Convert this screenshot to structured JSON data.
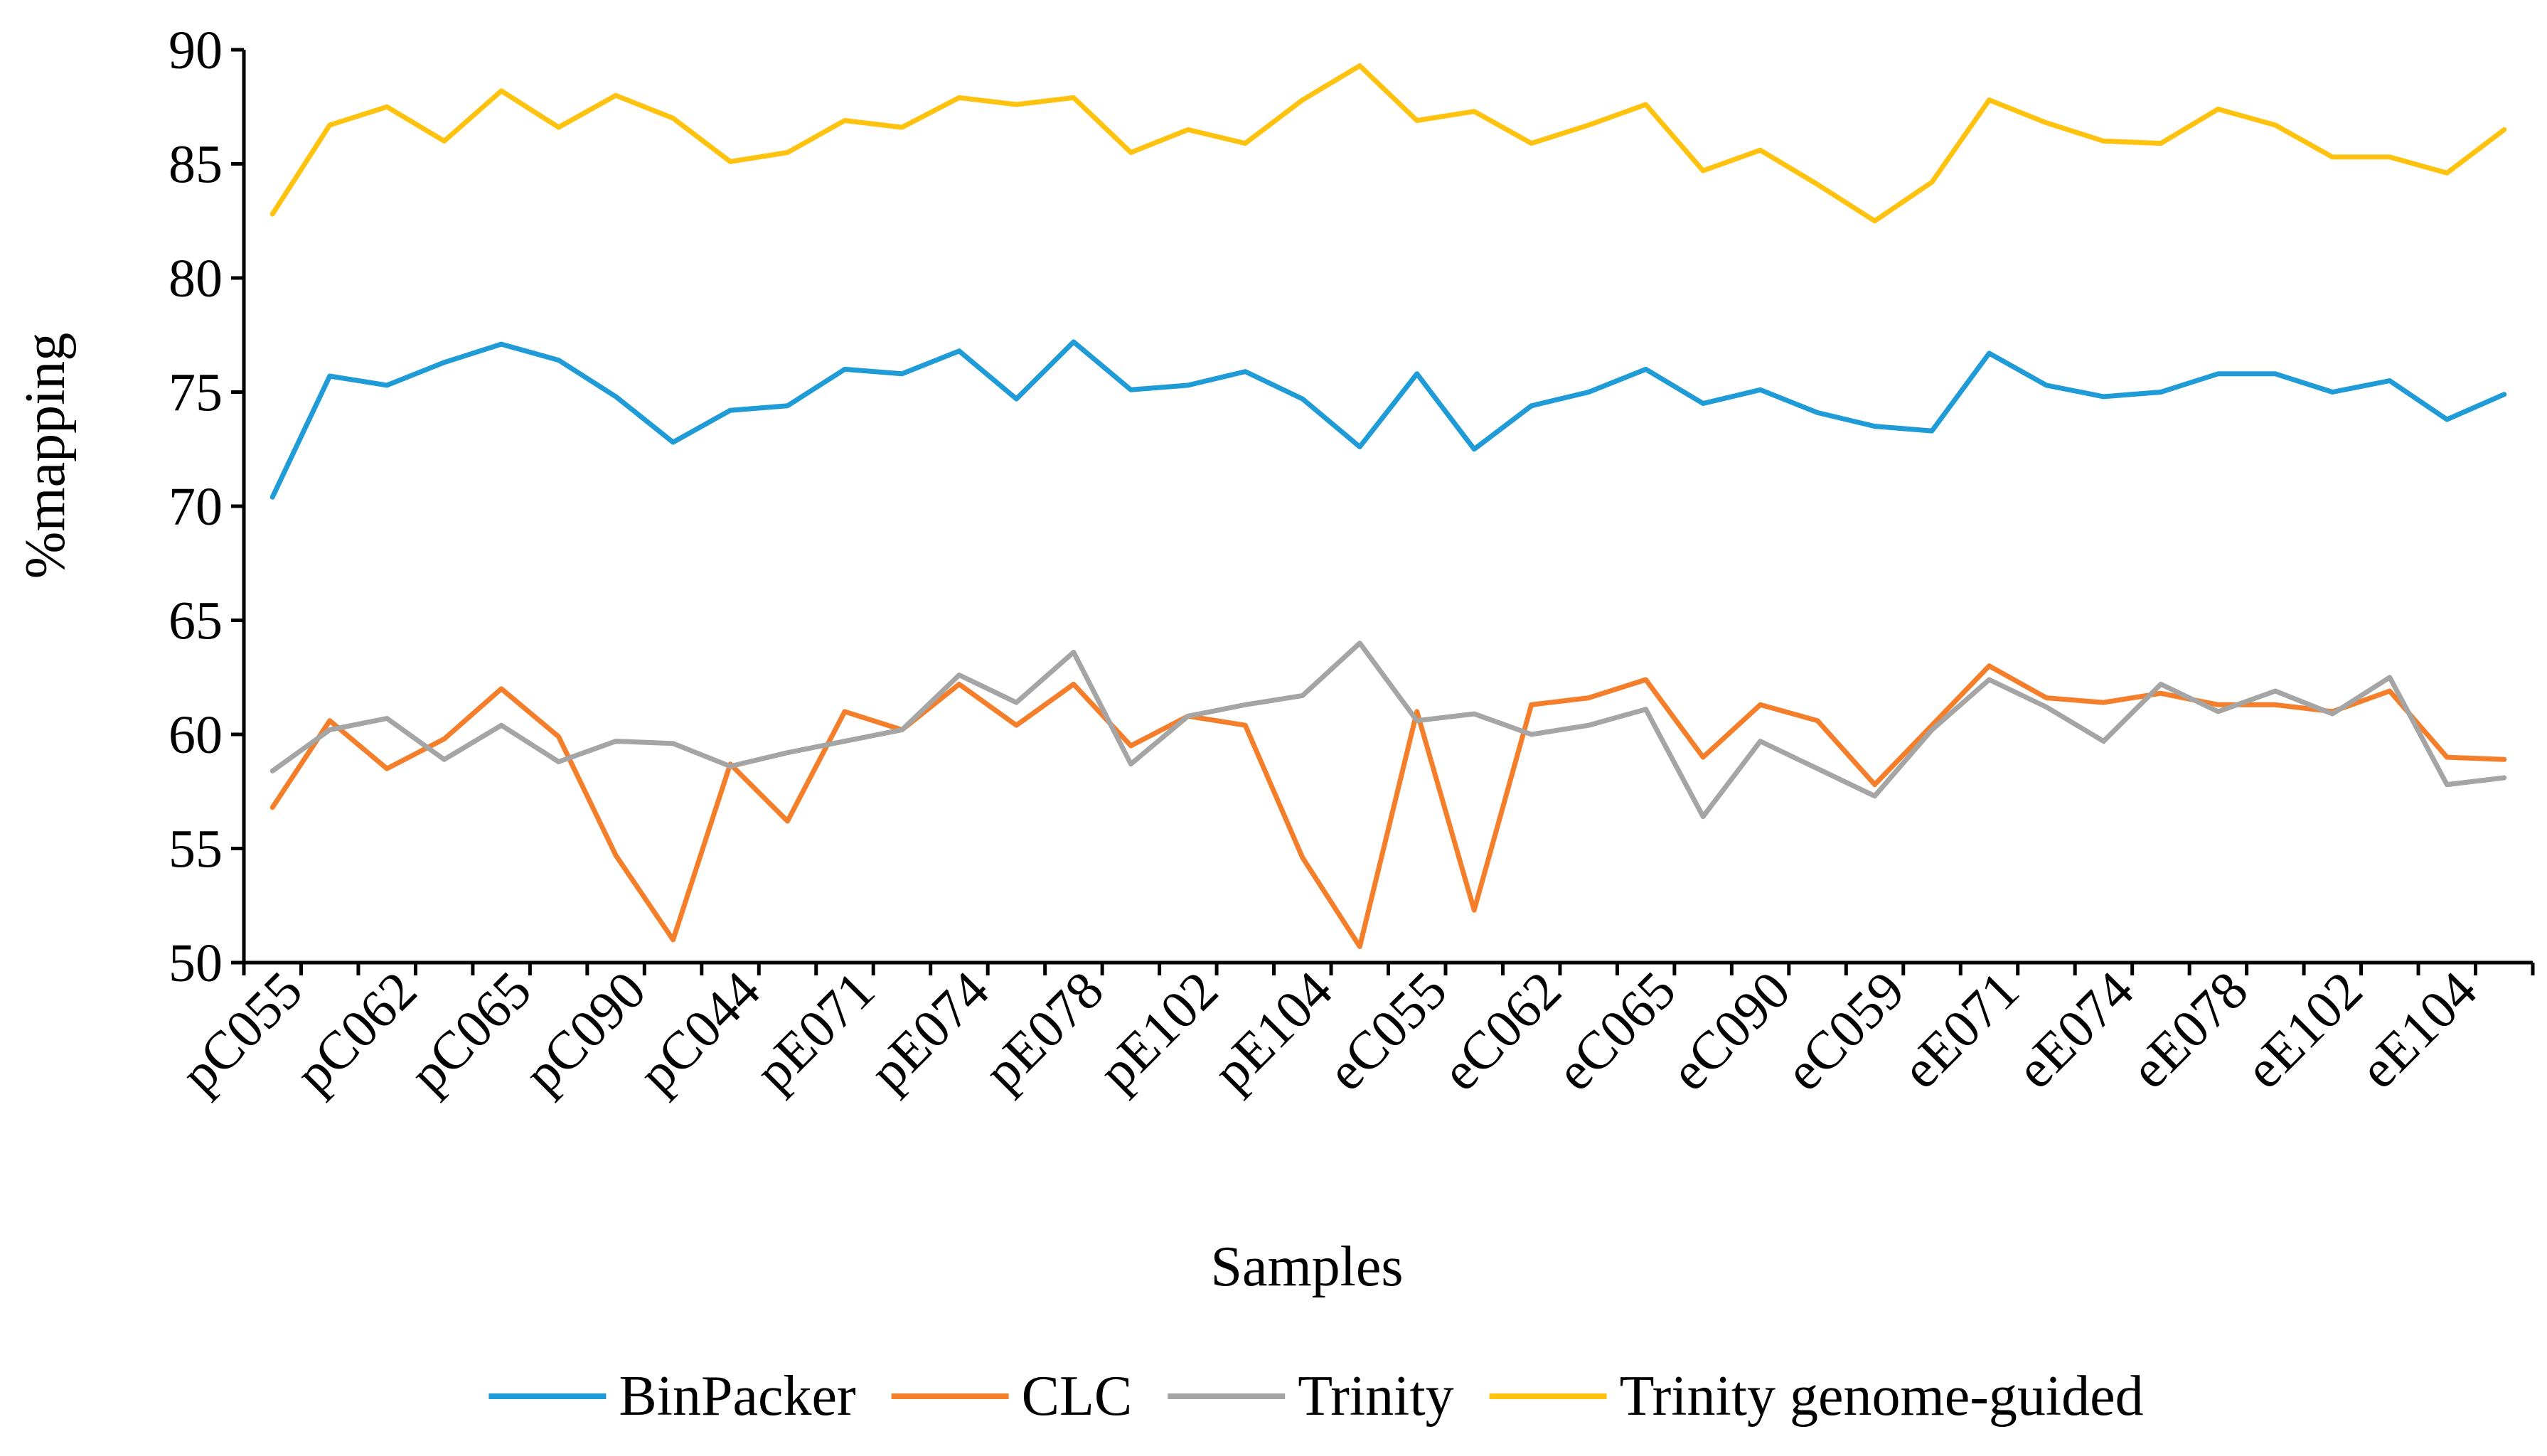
{
  "chart_data": {
    "type": "line",
    "title": "",
    "xlabel": "Samples",
    "ylabel": "%mapping",
    "ylim": [
      50,
      90
    ],
    "yticks": [
      50,
      55,
      60,
      65,
      70,
      75,
      80,
      85,
      90
    ],
    "grid": false,
    "legend_position": "bottom",
    "x_labels_shown": [
      "pC055",
      "pC062",
      "pC065",
      "pC090",
      "pC044",
      "pE071",
      "pE074",
      "pE078",
      "pE102",
      "pE104",
      "eC055",
      "eC062",
      "eC065",
      "eC090",
      "eC059",
      "eE071",
      "eE074",
      "eE078",
      "eE102",
      "eE104"
    ],
    "series": [
      {
        "name": "BinPacker",
        "color": "#1F9BD7",
        "values": [
          70.4,
          75.7,
          75.3,
          76.3,
          77.1,
          76.4,
          74.8,
          72.8,
          74.2,
          74.4,
          76.0,
          75.8,
          76.8,
          74.7,
          77.2,
          75.1,
          75.3,
          75.9,
          74.7,
          72.6,
          75.8,
          72.5,
          74.4,
          75.0,
          76.0,
          74.5,
          75.1,
          74.1,
          73.5,
          73.3,
          76.7,
          75.3,
          74.8,
          75.0,
          75.8,
          75.8,
          75.0,
          75.5,
          73.8,
          74.9
        ]
      },
      {
        "name": "CLC",
        "color": "#F47E2A",
        "values": [
          56.8,
          60.6,
          58.5,
          59.8,
          62.0,
          59.9,
          54.7,
          51.0,
          58.7,
          56.2,
          61.0,
          60.2,
          62.2,
          60.4,
          62.2,
          59.5,
          60.8,
          60.4,
          54.6,
          50.7,
          61.0,
          52.3,
          61.3,
          61.6,
          62.4,
          59.0,
          61.3,
          60.6,
          57.8,
          60.4,
          63.0,
          61.6,
          61.4,
          61.8,
          61.3,
          61.3,
          61.0,
          61.9,
          59.0,
          58.9
        ]
      },
      {
        "name": "Trinity",
        "color": "#A5A5A5",
        "values": [
          58.4,
          60.2,
          60.7,
          58.9,
          60.4,
          58.8,
          59.7,
          59.6,
          58.6,
          59.2,
          59.7,
          60.2,
          62.6,
          61.4,
          63.6,
          58.7,
          60.8,
          61.3,
          61.7,
          64.0,
          60.6,
          60.9,
          60.0,
          60.4,
          61.1,
          56.4,
          59.7,
          58.5,
          57.3,
          60.2,
          62.4,
          61.2,
          59.7,
          62.2,
          61.0,
          61.9,
          60.9,
          62.5,
          57.8,
          58.1
        ]
      },
      {
        "name": "Trinity genome-guided",
        "color": "#FFC20E",
        "values": [
          82.8,
          86.7,
          87.5,
          86.0,
          88.2,
          86.6,
          88.0,
          87.0,
          85.1,
          85.5,
          86.9,
          86.6,
          87.9,
          87.6,
          87.9,
          85.5,
          86.5,
          85.9,
          87.8,
          89.3,
          86.9,
          87.3,
          85.9,
          86.7,
          87.6,
          84.7,
          85.6,
          84.1,
          82.5,
          84.2,
          87.8,
          86.8,
          86.0,
          85.9,
          87.4,
          86.7,
          85.3,
          85.3,
          84.6,
          86.5
        ]
      }
    ]
  }
}
